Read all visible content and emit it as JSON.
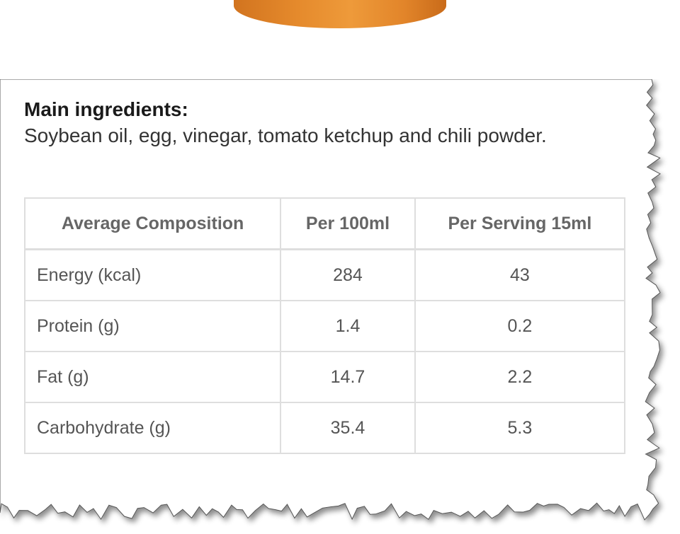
{
  "ingredients": {
    "heading": "Main ingredients:",
    "text": "Soybean oil, egg, vinegar, tomato ketchup and chili powder."
  },
  "nutrition_table": {
    "headers": [
      "Average Composition",
      "Per 100ml",
      "Per Serving 15ml"
    ],
    "rows": [
      [
        "Energy (kcal)",
        "284",
        "43"
      ],
      [
        "Protein (g)",
        "1.4",
        "0.2"
      ],
      [
        "Fat (g)",
        "14.7",
        "2.2"
      ],
      [
        "Carbohydrate (g)",
        "35.4",
        "5.3"
      ]
    ]
  },
  "colors": {
    "product": "#e58a2c",
    "border": "#dedede",
    "text": "#555555"
  }
}
